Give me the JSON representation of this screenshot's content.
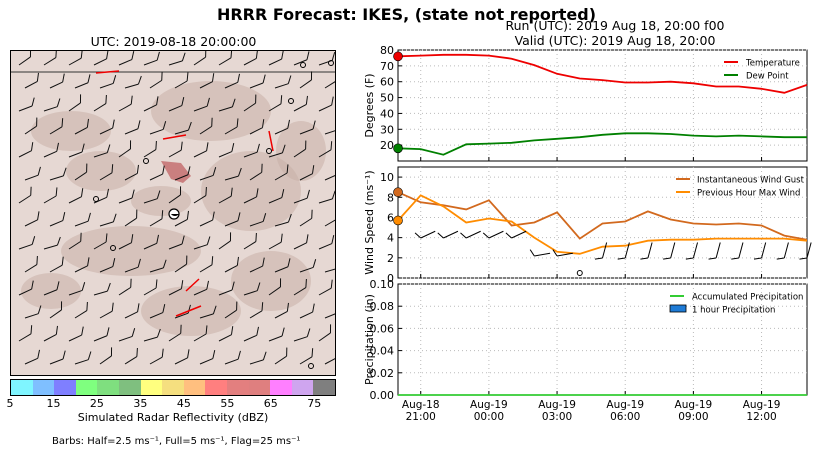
{
  "title": "HRRR Forecast: IKES, (state not reported)",
  "run_line": "Run (UTC): 2019 Aug 18, 20:00 f00",
  "valid_line": "Valid (UTC): 2019 Aug 18, 20:00",
  "map": {
    "title": "UTC: 2019-08-18 20:00:00",
    "colorbar_label": "Simulated Radar Reflectivity (dBZ)",
    "colorbar_ticks": [
      "5",
      "15",
      "25",
      "35",
      "45",
      "55",
      "65",
      "75"
    ],
    "colorbar_colors": [
      "#7ff5ff",
      "#7fbfff",
      "#7f7fff",
      "#7fff7f",
      "#7fdf7f",
      "#7fbf7f",
      "#ffff7f",
      "#f5df7f",
      "#ffbf7f",
      "#ff7f7f",
      "#e37f7f",
      "#df7f7f",
      "#ff7fff",
      "#cfa5ef",
      "#7f7f7f"
    ],
    "barb_note": "Barbs: Half=2.5 ms⁻¹, Full=5 ms⁻¹, Flag=25 ms⁻¹"
  },
  "chart_data": [
    {
      "type": "line",
      "ylabel": "Degrees (F)",
      "ylim": [
        10,
        80
      ],
      "yticks": [
        "20",
        "30",
        "40",
        "50",
        "60",
        "70",
        "80"
      ],
      "legend_position": "top-right",
      "series": [
        {
          "name": "Temperature",
          "color": "#ee0000",
          "values": [
            76,
            76.5,
            77,
            77,
            76.5,
            74.5,
            70.5,
            65,
            62,
            61,
            59.5,
            59.5,
            60,
            59,
            57,
            57,
            55.5,
            53,
            58
          ]
        },
        {
          "name": "Dew Point",
          "color": "#008000",
          "values": [
            18,
            17.5,
            14,
            20.5,
            21,
            21.5,
            23,
            24,
            25,
            26.5,
            27.5,
            27.5,
            27,
            26,
            25.5,
            26,
            25.5,
            25,
            25
          ]
        }
      ]
    },
    {
      "type": "line",
      "ylabel": "Wind Speed (ms⁻¹)",
      "ylim": [
        0,
        11
      ],
      "yticks": [
        "0",
        "2",
        "4",
        "6",
        "8",
        "10"
      ],
      "legend_position": "top-right",
      "series": [
        {
          "name": "Instantaneous Wind Gust",
          "color": "#d2691e",
          "values": [
            8.5,
            7.5,
            7.2,
            6.8,
            7.7,
            5.2,
            5.5,
            6.5,
            3.9,
            5.4,
            5.6,
            6.6,
            5.8,
            5.4,
            5.3,
            5.4,
            5.2,
            4.2,
            3.8
          ]
        },
        {
          "name": "Previous Hour Max Wind",
          "color": "#ff8c00",
          "values": [
            5.7,
            8.2,
            7.1,
            5.5,
            5.9,
            5.6,
            4.0,
            2.6,
            2.4,
            3.1,
            3.2,
            3.7,
            3.8,
            3.8,
            3.9,
            3.9,
            3.9,
            3.9,
            3.7
          ]
        }
      ]
    },
    {
      "type": "line",
      "ylabel": "Precipitation (in)",
      "ylim": [
        0,
        0.1
      ],
      "yticks": [
        "0.00",
        "0.02",
        "0.04",
        "0.06",
        "0.08",
        "0.10"
      ],
      "legend_position": "top-right",
      "series": [
        {
          "name": "Accumulated Precipitation",
          "color": "#33cc33",
          "values": [
            0,
            0,
            0,
            0,
            0,
            0,
            0,
            0,
            0,
            0,
            0,
            0,
            0,
            0,
            0,
            0,
            0,
            0,
            0
          ]
        },
        {
          "name": "1 hour Precipitation",
          "color": "#1e7bd6",
          "values": [
            0,
            0,
            0,
            0,
            0,
            0,
            0,
            0,
            0,
            0,
            0,
            0,
            0,
            0,
            0,
            0,
            0,
            0,
            0
          ]
        }
      ]
    }
  ],
  "x_axis": {
    "hours": [
      20,
      21,
      22,
      23,
      24,
      25,
      26,
      27,
      28,
      29,
      30,
      31,
      32,
      33,
      34,
      35,
      36,
      37,
      38
    ],
    "tick_labels": [
      [
        "Aug-18",
        "21:00"
      ],
      [
        "Aug-19",
        "00:00"
      ],
      [
        "Aug-19",
        "03:00"
      ],
      [
        "Aug-19",
        "06:00"
      ],
      [
        "Aug-19",
        "09:00"
      ],
      [
        "Aug-19",
        "12:00"
      ]
    ],
    "tick_hours": [
      21,
      24,
      27,
      30,
      33,
      36
    ]
  }
}
